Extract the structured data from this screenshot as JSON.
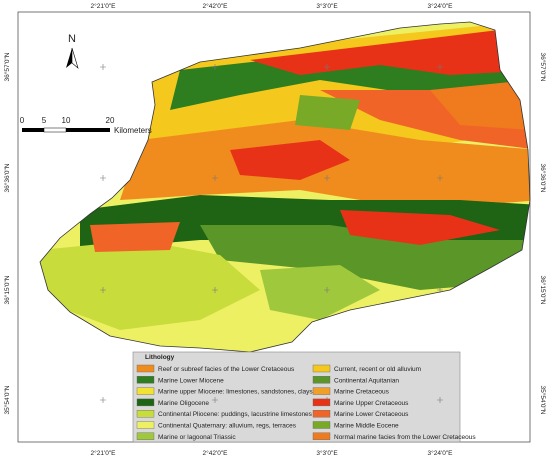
{
  "map": {
    "top_labels": [
      "2°21'0\"E",
      "2°42'0\"E",
      "3°3'0\"E",
      "3°24'0\"E"
    ],
    "side_labels": [
      "36°57'0\"N",
      "36°36'0\"N",
      "36°15'0\"N",
      "35°54'0\"N"
    ],
    "north": "N",
    "scale": {
      "ticks": [
        0,
        5,
        10,
        20
      ],
      "unit": "Kilometers"
    },
    "legend": {
      "title": "Lithology",
      "items": [
        {
          "label": "Reef or subreef facies of the Lower Cretaceous",
          "color": "#f08c1e"
        },
        {
          "label": "Marine Lower Miocene",
          "color": "#2e7d1e"
        },
        {
          "label": "Marine upper Miocene: limestones, sandstones, clays",
          "color": "#f2e234"
        },
        {
          "label": "Marine Oligocene",
          "color": "#1e6414"
        },
        {
          "label": "Continental Pliocene: puddings, lacustrine limestones",
          "color": "#c8dc3c"
        },
        {
          "label": "Continental Quaternary: alluvium, regs, terraces",
          "color": "#eef064"
        },
        {
          "label": "Marine or lagoonal Triassic",
          "color": "#a0c83c"
        },
        {
          "label": "Current, recent or old alluvium",
          "color": "#f5c81e"
        },
        {
          "label": "Continental Aquitanian",
          "color": "#5a9628"
        },
        {
          "label": "Marine Cretaceous",
          "color": "#f0a028"
        },
        {
          "label": "Marine Upper Cretaceous",
          "color": "#e83218"
        },
        {
          "label": "Marine Lower Cretaceous",
          "color": "#f06428"
        },
        {
          "label": "Marine Middle Eocene",
          "color": "#78aa28"
        },
        {
          "label": "Normal marine facies from the Lower Cretaceous",
          "color": "#f07a1e"
        }
      ]
    }
  }
}
